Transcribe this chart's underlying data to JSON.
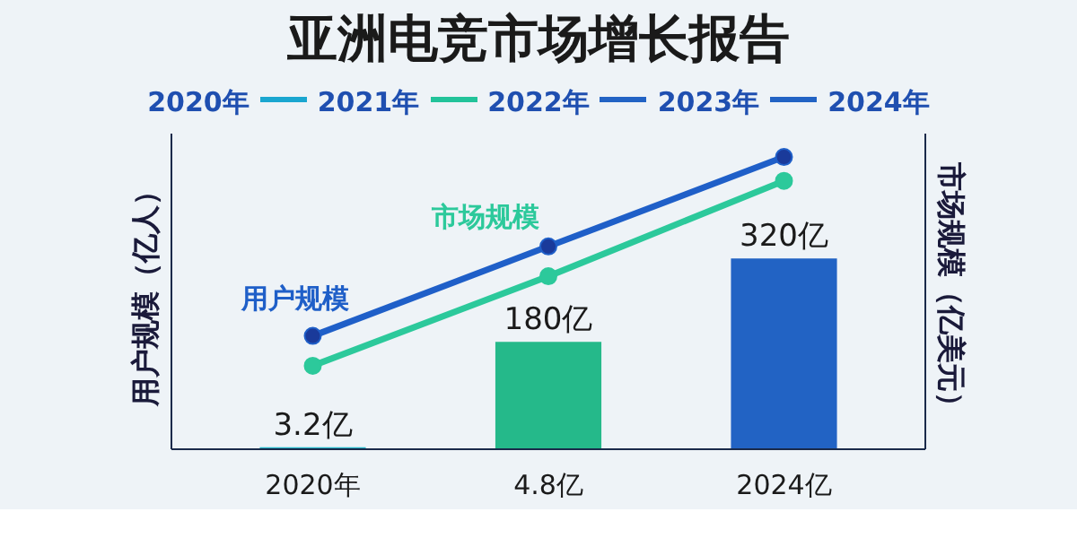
{
  "chart_data": {
    "type": "bar",
    "title": "亚洲电竞市场增长报告",
    "annotations": [
      "2020年",
      "2021年",
      "2022年",
      "2023年",
      "2024年"
    ],
    "ylabel": "用户规模（亿人）",
    "y2label": "市场规模（亿美元）",
    "categories": [
      "2020年",
      "4.8亿",
      "2024亿"
    ],
    "legend": false,
    "marker": "circle",
    "series": [
      {
        "colors": [
          "#22b5c8",
          "#25b98a",
          "#2263c4"
        ],
        "values": [
          3.2,
          180,
          320
        ],
        "value_labels": [
          "3.2亿",
          "180亿",
          "320亿"
        ]
      },
      {
        "type": "line",
        "name": "用户规模",
        "color": "#1f5fc8",
        "values": [
          190,
          340,
          490
        ]
      },
      {
        "type": "line",
        "name": "市场规模",
        "color": "#2cc99b",
        "values": [
          140,
          290,
          450
        ]
      }
    ]
  }
}
